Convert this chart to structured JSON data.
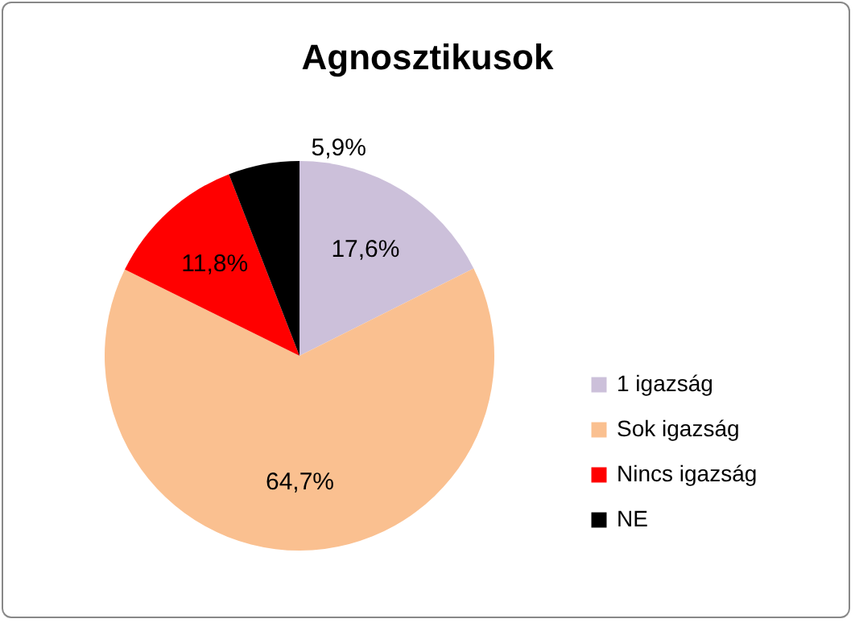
{
  "chart_data": {
    "type": "pie",
    "title": "Agnosztikusok",
    "categories": [
      "1 igazság",
      "Sok igazság",
      "Nincs igazság",
      "NE"
    ],
    "values": [
      17.6,
      64.7,
      11.8,
      5.9
    ],
    "value_labels": [
      "17,6%",
      "64,7%",
      "11,8%",
      "5,9%"
    ],
    "colors": [
      "#ccc0da",
      "#fac090",
      "#ff0000",
      "#000000"
    ],
    "legend": "right"
  }
}
